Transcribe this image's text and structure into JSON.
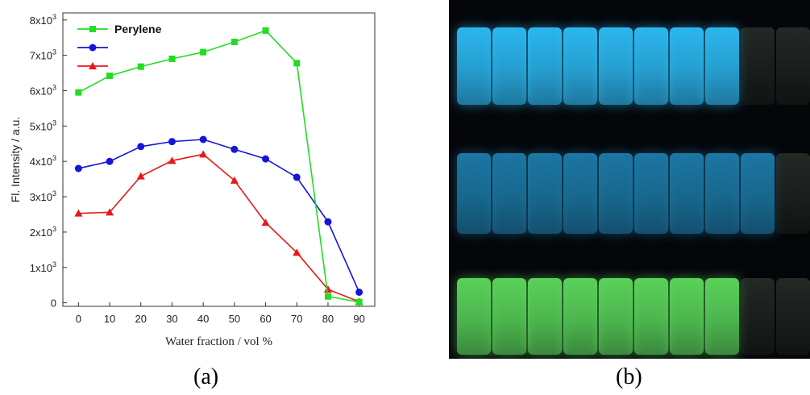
{
  "panels": {
    "a_label": "(a)",
    "b_label": "(b)"
  },
  "colors": {
    "green": "#22dd22",
    "blue": "#1515d8",
    "red": "#e81818",
    "blue_vials": "#2ec3ff",
    "dim_blue_vials": "#1d7fae",
    "green_vials": "#5fe05f"
  },
  "chart_data": {
    "type": "line",
    "xlabel": "Water fraction / vol %",
    "ylabel": "Fl. Intensity / a.u.",
    "x": [
      0,
      10,
      20,
      30,
      40,
      50,
      60,
      70,
      80,
      90
    ],
    "xlim": [
      -5,
      95
    ],
    "ylim": [
      -100,
      8200
    ],
    "yticks": [
      {
        "value": 0,
        "label": "0"
      },
      {
        "value": 1000,
        "label": "1x10",
        "sup": "3"
      },
      {
        "value": 2000,
        "label": "2x10",
        "sup": "3"
      },
      {
        "value": 3000,
        "label": "3x10",
        "sup": "3"
      },
      {
        "value": 4000,
        "label": "4x10",
        "sup": "3"
      },
      {
        "value": 5000,
        "label": "5x10",
        "sup": "3"
      },
      {
        "value": 6000,
        "label": "6x10",
        "sup": "3"
      },
      {
        "value": 7000,
        "label": "7x10",
        "sup": "3"
      },
      {
        "value": 8000,
        "label": "8x10",
        "sup": "3"
      }
    ],
    "legend_position": "top-left",
    "series": [
      {
        "name": "Perylene",
        "color": "#22dd22",
        "marker": "square",
        "values": [
          5950,
          6420,
          6680,
          6900,
          7090,
          7380,
          7700,
          6780,
          180,
          20
        ]
      },
      {
        "name": "",
        "color": "#1515d8",
        "marker": "circle",
        "values": [
          3800,
          4000,
          4420,
          4560,
          4620,
          4340,
          4070,
          3550,
          2290,
          300
        ]
      },
      {
        "name": "",
        "color": "#e81818",
        "marker": "triangle",
        "values": [
          2530,
          2560,
          3580,
          4020,
          4200,
          3460,
          2270,
          1420,
          380,
          30
        ]
      }
    ]
  },
  "photo": {
    "rows": [
      {
        "name": "blue-row",
        "glow": "#2ec3ff",
        "dim_count": 2,
        "count": 10
      },
      {
        "name": "dim-blue-row",
        "glow": "#1d7fae",
        "dim_count": 1,
        "count": 10
      },
      {
        "name": "green-row",
        "glow": "#5fe05f",
        "dim_count": 2,
        "count": 10
      }
    ]
  }
}
